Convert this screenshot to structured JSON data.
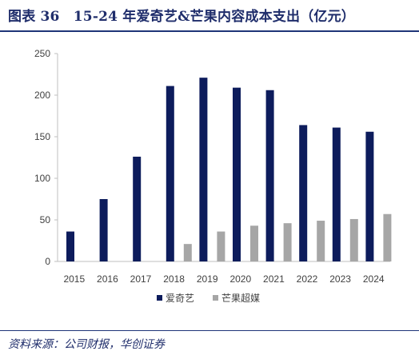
{
  "title": "图表 36　15-24 年爱奇艺&芒果内容成本支出（亿元）",
  "source": "资料来源：公司财报，华创证券",
  "colors": {
    "series_0": "#0d1c5c",
    "series_1": "#a6a6a6",
    "axis": "#bfbfbf",
    "text": "#404040"
  },
  "chart_data": {
    "type": "bar",
    "title": "15-24 年爱奇艺&芒果内容成本支出（亿元）",
    "xlabel": "",
    "ylabel": "",
    "categories": [
      "2015",
      "2016",
      "2017",
      "2018",
      "2019",
      "2020",
      "2021",
      "2022",
      "2023",
      "2024"
    ],
    "series": [
      {
        "name": "爱奇艺",
        "values": [
          36,
          75,
          126,
          211,
          221,
          209,
          206,
          164,
          161,
          156
        ]
      },
      {
        "name": "芒果超媒",
        "values": [
          null,
          null,
          null,
          21,
          36,
          43,
          46,
          49,
          51,
          57
        ]
      }
    ],
    "ylim": [
      0,
      250
    ],
    "yticks": [
      0,
      50,
      100,
      150,
      200,
      250
    ],
    "grid": false,
    "legend": "bottom-center"
  }
}
